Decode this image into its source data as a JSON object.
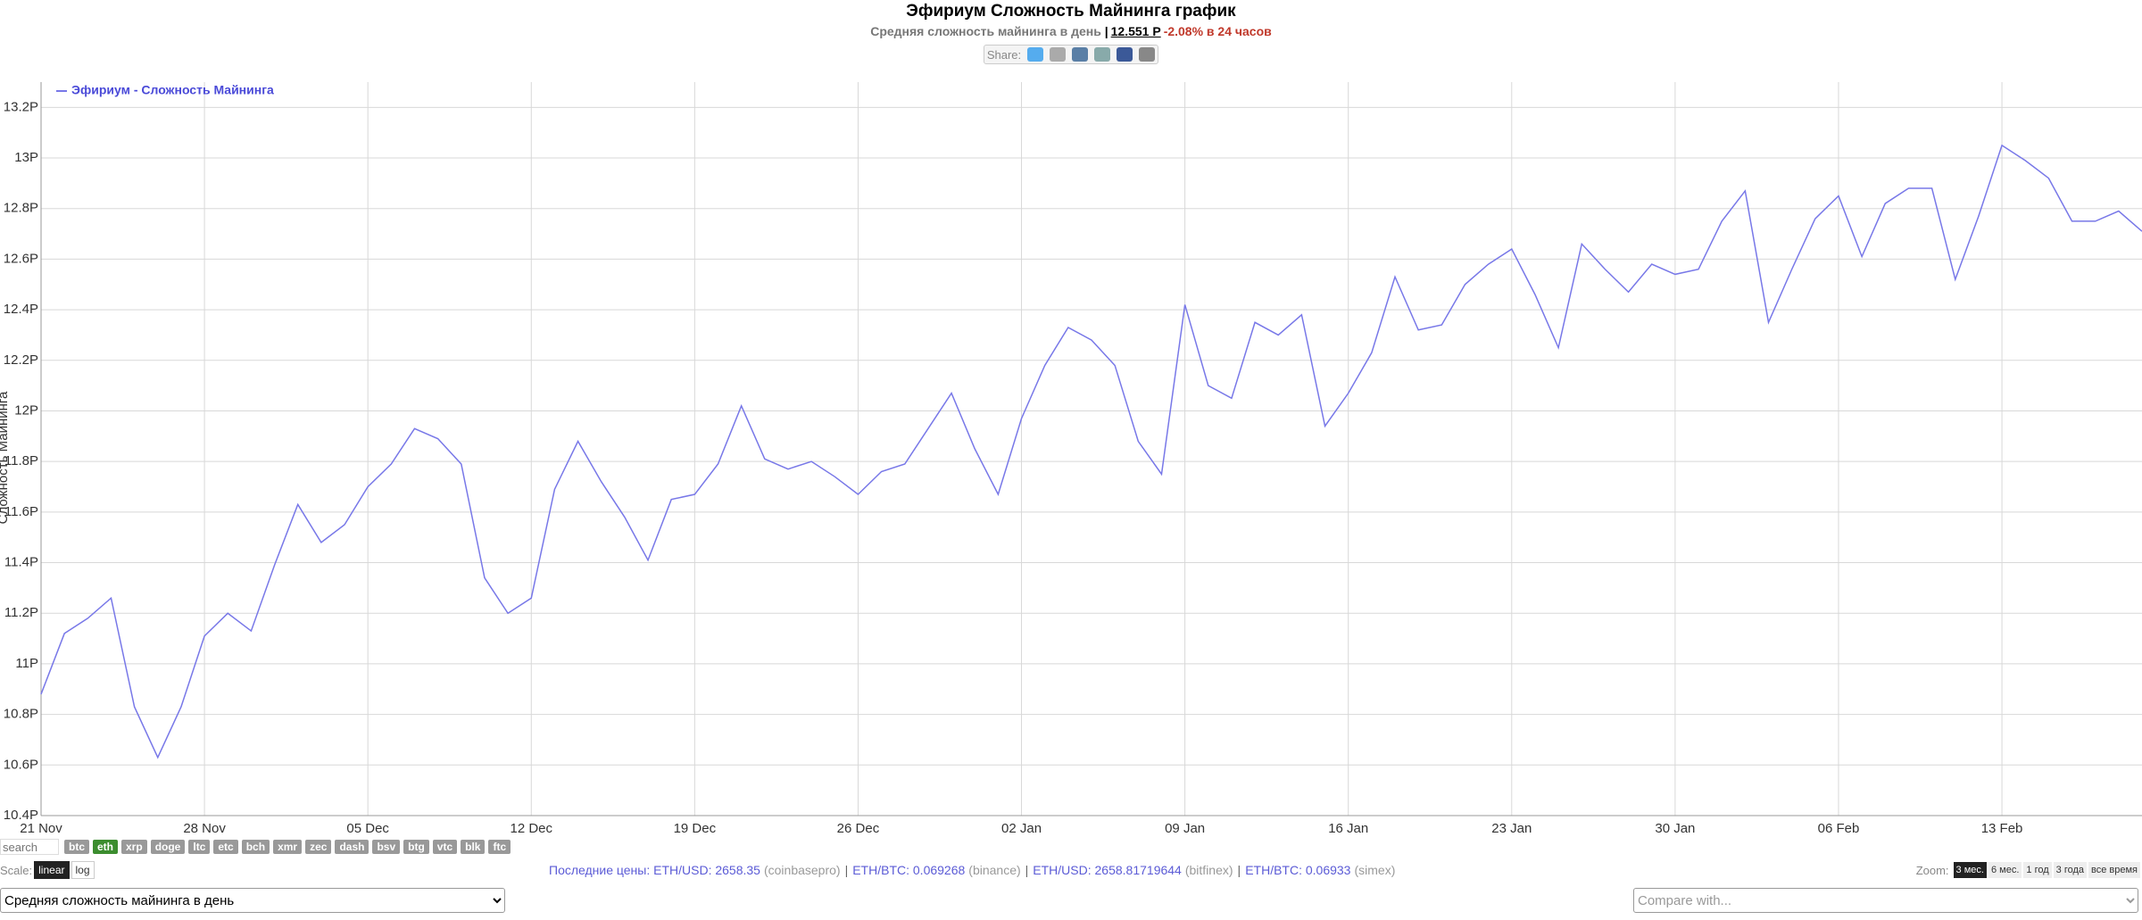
{
  "header": {
    "title": "Эфириум Сложность Майнинга график",
    "subtitle": "Средняя сложность майнинга в день",
    "separator": "|",
    "current_value": "12.551 P",
    "change": "-2.08% в 24 часов",
    "share_label": "Share:"
  },
  "chart_data": {
    "type": "line",
    "y_label": "Сложность Майнинга",
    "categories": [
      "21 Nov",
      null,
      null,
      null,
      null,
      null,
      null,
      "28 Nov",
      null,
      null,
      null,
      null,
      null,
      null,
      "05 Dec",
      null,
      null,
      null,
      null,
      null,
      null,
      "12 Dec",
      null,
      null,
      null,
      null,
      null,
      null,
      "19 Dec",
      null,
      null,
      null,
      null,
      null,
      null,
      "26 Dec",
      null,
      null,
      null,
      null,
      null,
      null,
      "02 Jan",
      null,
      null,
      null,
      null,
      null,
      null,
      "09 Jan",
      null,
      null,
      null,
      null,
      null,
      null,
      "16 Jan",
      null,
      null,
      null,
      null,
      null,
      null,
      "23 Jan",
      null,
      null,
      null,
      null,
      null,
      null,
      "30 Jan",
      null,
      null,
      null,
      null,
      null,
      null,
      "06 Feb",
      null,
      null,
      null,
      null,
      null,
      null,
      "13 Feb",
      null,
      null,
      null,
      null,
      null,
      null
    ],
    "series": [
      {
        "name": "Эфириум - Сложность Майнинга",
        "color": "#7878e8",
        "values": [
          10.88,
          11.12,
          11.18,
          11.26,
          10.83,
          10.63,
          10.83,
          11.11,
          11.2,
          11.13,
          11.39,
          11.63,
          11.48,
          11.55,
          11.7,
          11.79,
          11.93,
          11.89,
          11.79,
          11.34,
          11.2,
          11.26,
          11.69,
          11.88,
          11.72,
          11.58,
          11.41,
          11.65,
          11.67,
          11.79,
          12.02,
          11.81,
          11.77,
          11.8,
          11.74,
          11.67,
          11.76,
          11.79,
          11.93,
          12.07,
          11.85,
          11.67,
          11.97,
          12.18,
          12.33,
          12.28,
          12.18,
          11.88,
          11.75,
          12.42,
          12.1,
          12.05,
          12.35,
          12.3,
          12.38,
          11.94,
          12.07,
          12.23,
          12.53,
          12.32,
          12.34,
          12.5,
          12.58,
          12.64,
          12.46,
          12.25,
          12.66,
          12.56,
          12.47,
          12.58,
          12.54,
          12.56,
          12.75,
          12.87,
          12.35,
          12.56,
          12.76,
          12.85,
          12.61,
          12.82,
          12.88,
          12.88,
          12.52,
          12.77,
          13.05,
          12.99,
          12.92,
          12.75,
          12.75,
          12.79,
          12.71
        ]
      }
    ],
    "ylim": [
      10.4,
      13.3
    ],
    "yticks": [
      {
        "value": 10.4,
        "label": "10.4P"
      },
      {
        "value": 10.6,
        "label": "10.6P"
      },
      {
        "value": 10.8,
        "label": "10.8P"
      },
      {
        "value": 11,
        "label": "11P"
      },
      {
        "value": 11.2,
        "label": "11.2P"
      },
      {
        "value": 11.4,
        "label": "11.4P"
      },
      {
        "value": 11.6,
        "label": "11.6P"
      },
      {
        "value": 11.8,
        "label": "11.8P"
      },
      {
        "value": 12,
        "label": "12P"
      },
      {
        "value": 12.2,
        "label": "12.2P"
      },
      {
        "value": 12.4,
        "label": "12.4P"
      },
      {
        "value": 12.6,
        "label": "12.6P"
      },
      {
        "value": 12.8,
        "label": "12.8P"
      },
      {
        "value": 13,
        "label": "13P"
      },
      {
        "value": 13.2,
        "label": "13.2P"
      }
    ],
    "grid": true,
    "legend": "top-left"
  },
  "controls": {
    "search_placeholder": "search",
    "coins": [
      "btc",
      "eth",
      "xrp",
      "doge",
      "ltc",
      "etc",
      "bch",
      "xmr",
      "zec",
      "dash",
      "bsv",
      "btg",
      "vtc",
      "blk",
      "ftc"
    ],
    "selected_coin": 1,
    "scale_label": "Scale:",
    "scale_options": [
      "linear",
      "log"
    ],
    "selected_scale": 0,
    "last_prices_label": "Последние цены:",
    "prices": [
      {
        "quote": "ETH/USD: 2658.35",
        "source": "(coinbasepro)"
      },
      {
        "quote": "ETH/BTC: 0.069268",
        "source": "(binance)"
      },
      {
        "quote": "ETH/USD: 2658.81719644",
        "source": "(bitfinex)"
      },
      {
        "quote": "ETH/BTC: 0.06933",
        "source": "(simex)"
      }
    ],
    "price_separator": "|",
    "zoom_label": "Zoom:",
    "zoom_options": [
      "3 мес.",
      "6 мес.",
      "1 год",
      "3 года",
      "все время"
    ],
    "selected_zoom": 0,
    "metric_select": "Средняя сложность майнинга в день",
    "compare_placeholder": "Compare with..."
  }
}
